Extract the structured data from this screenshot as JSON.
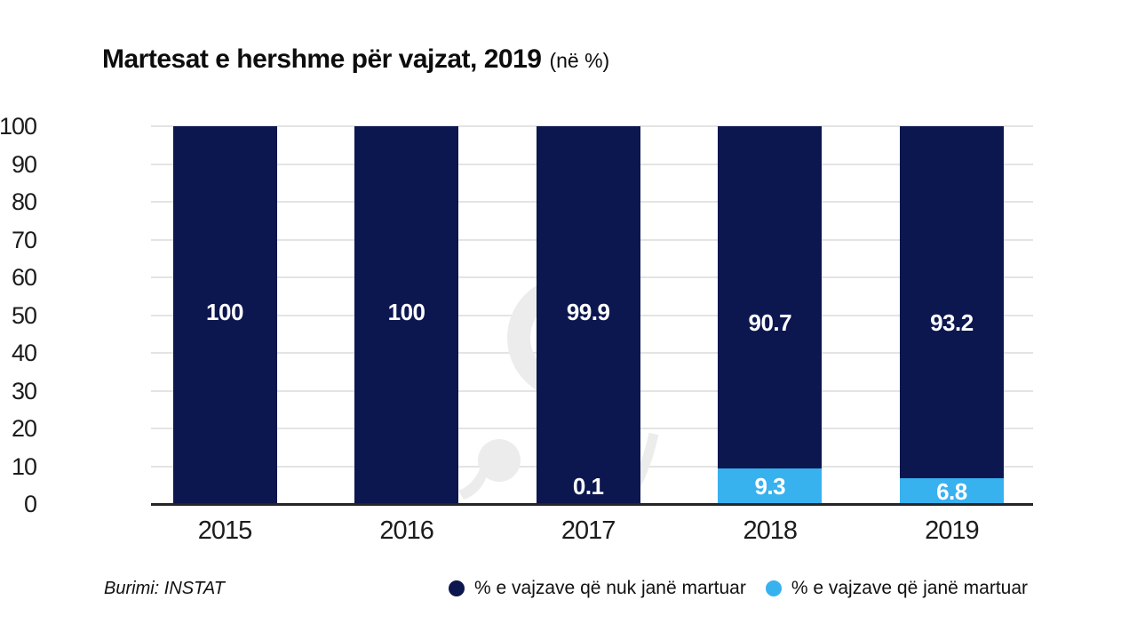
{
  "title": {
    "main": "Martesat e hershme për vajzat, 2019",
    "unit": "(në %)"
  },
  "source": "Burimi: INSTAT",
  "legend": {
    "items": [
      {
        "label": "% e vajzave që nuk janë martuar",
        "color": "#0c164f"
      },
      {
        "label": "% e vajzave që janë martuar",
        "color": "#38b1ef"
      }
    ]
  },
  "colors": {
    "navy": "#0c164f",
    "light_blue": "#38b1ef",
    "gridline": "#e4e4e4",
    "baseline": "#252525",
    "watermark": "#ececec",
    "label_text": "#ffffff"
  },
  "chart_data": {
    "type": "bar",
    "stacked": true,
    "title": "Martesat e hershme për vajzat, 2019 (në %)",
    "categories": [
      "2015",
      "2016",
      "2017",
      "2018",
      "2019"
    ],
    "series": [
      {
        "name": "% e vajzave që nuk janë martuar",
        "color": "#0c164f",
        "values": [
          100,
          100,
          99.9,
          90.7,
          93.2
        ],
        "labels": [
          "100",
          "100",
          "99.9",
          "90.7",
          "93.2"
        ]
      },
      {
        "name": "% e vajzave që janë martuar",
        "color": "#38b1ef",
        "values": [
          0,
          0,
          0.1,
          9.3,
          6.8
        ],
        "labels": [
          "",
          "",
          "0.1",
          "9.3",
          "6.8"
        ]
      }
    ],
    "xlabel": "",
    "ylabel": "",
    "ylim": [
      0,
      100
    ],
    "yticks": [
      0,
      10,
      20,
      30,
      40,
      50,
      60,
      70,
      80,
      90,
      100
    ],
    "grid": true,
    "legend_position": "bottom-right"
  }
}
